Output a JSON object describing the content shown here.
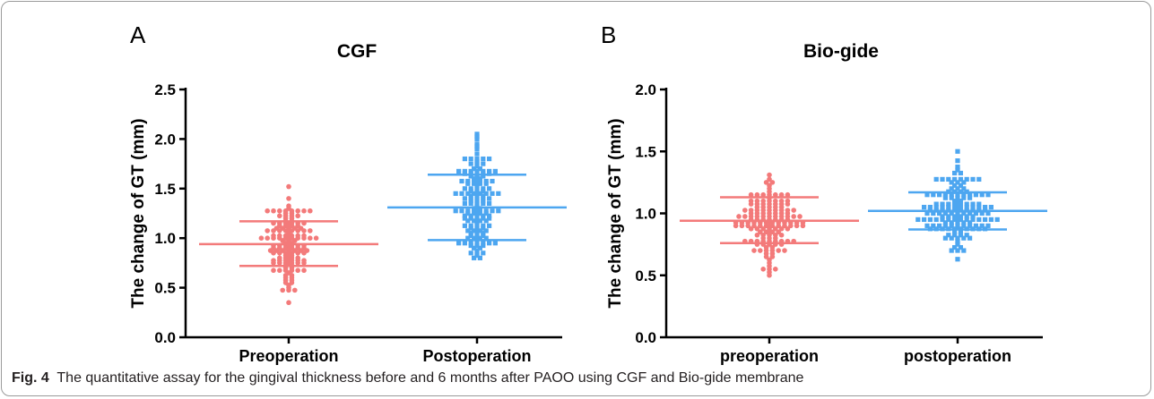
{
  "colors": {
    "pre": "#f37a7a",
    "post": "#4da6f0",
    "axis": "#000000",
    "caption_bold": "#231f20"
  },
  "caption": {
    "label": "Fig. 4",
    "text": "The quantitative assay for the gingival thickness before and 6 months after PAOO using CGF and Bio-gide membrane"
  },
  "chart_data": [
    {
      "type": "scatter",
      "panel_letter": "A",
      "title": "CGF",
      "xlabel": "",
      "ylabel": "The change of GT (mm)",
      "ylim": [
        0,
        2.5
      ],
      "yticks": [
        "0.0",
        "0.5",
        "1.0",
        "1.5",
        "2.0",
        "2.5"
      ],
      "categories": [
        "Preoperation",
        "Postoperation"
      ],
      "groups": [
        {
          "category": "Preoperation",
          "marker": "circle",
          "mean": 0.94,
          "sd_low": 0.72,
          "sd_high": 1.17,
          "n": 135,
          "min": 0.35,
          "max": 1.52
        },
        {
          "category": "Postoperation",
          "marker": "square",
          "mean": 1.31,
          "sd_low": 0.98,
          "sd_high": 1.64,
          "n": 150,
          "min": 0.8,
          "max": 2.05
        }
      ]
    },
    {
      "type": "scatter",
      "panel_letter": "B",
      "title": "Bio-gide",
      "xlabel": "",
      "ylabel": "The change of GT (mm)",
      "ylim": [
        0,
        2.0
      ],
      "yticks": [
        "0.0",
        "0.5",
        "1.0",
        "1.5",
        "2.0"
      ],
      "categories": [
        "preoperation",
        "postoperation"
      ],
      "groups": [
        {
          "category": "preoperation",
          "marker": "circle",
          "mean": 0.94,
          "sd_low": 0.76,
          "sd_high": 1.13,
          "n": 145,
          "min": 0.5,
          "max": 1.31
        },
        {
          "category": "postoperation",
          "marker": "square",
          "mean": 1.02,
          "sd_low": 0.87,
          "sd_high": 1.17,
          "n": 150,
          "min": 0.63,
          "max": 1.5
        }
      ]
    }
  ]
}
